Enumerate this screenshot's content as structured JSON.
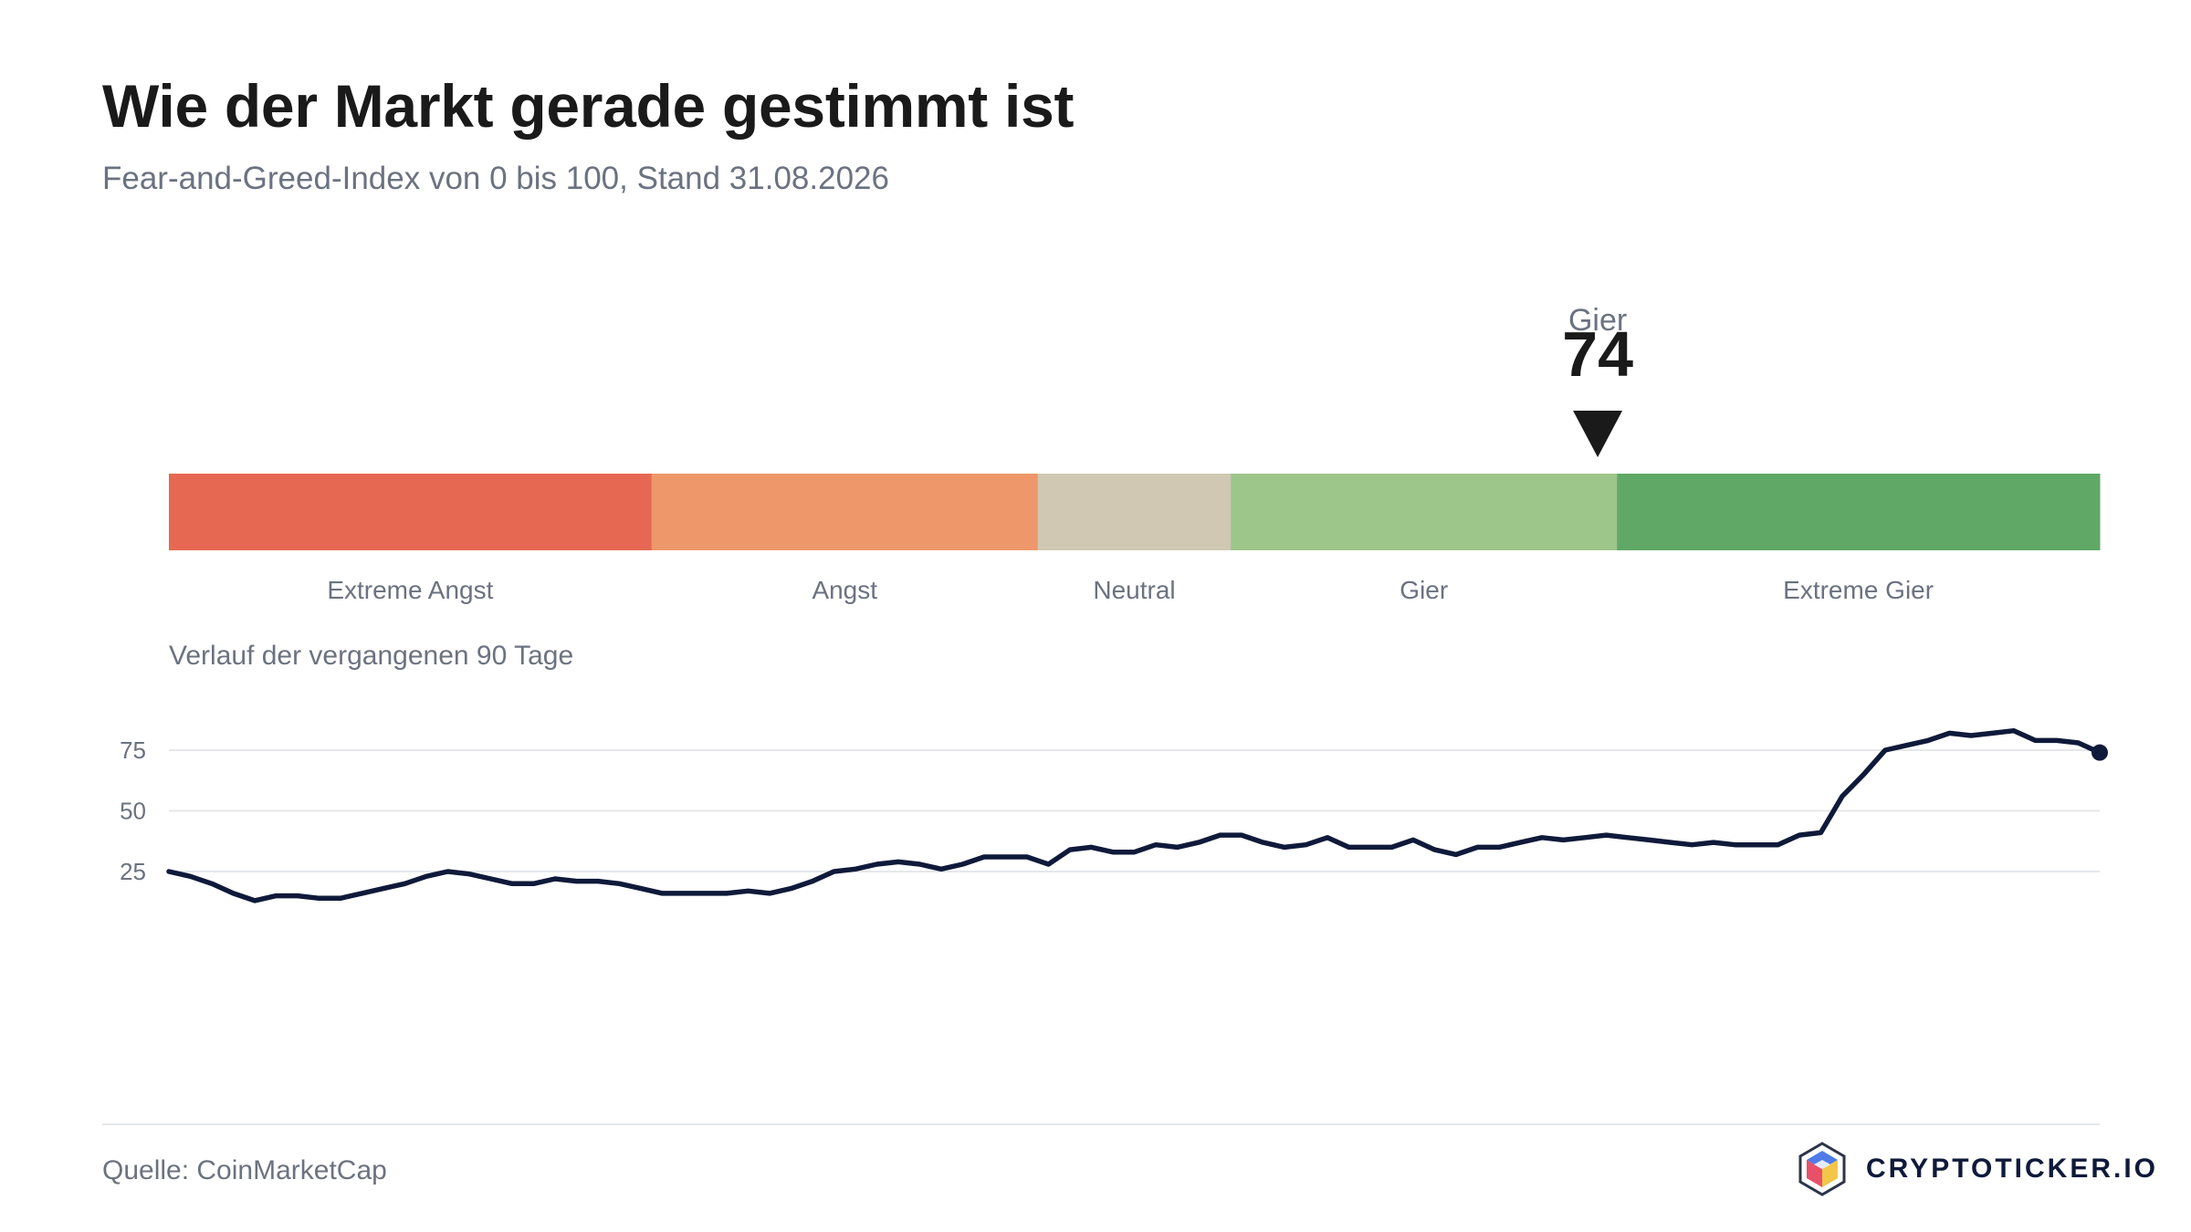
{
  "header": {
    "title": "Wie der Markt gerade gestimmt ist",
    "subtitle": "Fear-and-Greed-Index von 0 bis 100, Stand 31.08.2026"
  },
  "footer": {
    "source": "Quelle: CoinMarketCap",
    "brand": "CRYPTOTICKER.IO"
  },
  "chart_data": [
    {
      "type": "gauge",
      "value": 74,
      "value_label": "Gier",
      "min": 0,
      "max": 100,
      "segments": [
        {
          "label": "Extreme Angst",
          "from": 0,
          "to": 25,
          "color": "#e76852"
        },
        {
          "label": "Angst",
          "from": 25,
          "to": 45,
          "color": "#ee976b"
        },
        {
          "label": "Neutral",
          "from": 45,
          "to": 55,
          "color": "#d0c8b3"
        },
        {
          "label": "Gier",
          "from": 55,
          "to": 75,
          "color": "#9dc68b"
        },
        {
          "label": "Extreme Gier",
          "from": 75,
          "to": 100,
          "color": "#60a865"
        }
      ],
      "marker_color": "#1a1a1a"
    },
    {
      "type": "line",
      "title": "Verlauf der vergangenen 90 Tage",
      "ylim": [
        0,
        100
      ],
      "yticks": [
        25,
        50,
        75
      ],
      "grid": true,
      "line_color": "#0f1a3a",
      "last_point_marker": true,
      "values": [
        25,
        23,
        20,
        16,
        13,
        15,
        15,
        14,
        14,
        16,
        18,
        20,
        23,
        25,
        24,
        22,
        20,
        20,
        22,
        21,
        21,
        20,
        18,
        16,
        16,
        16,
        16,
        17,
        16,
        18,
        21,
        25,
        26,
        28,
        29,
        28,
        26,
        28,
        31,
        31,
        31,
        28,
        34,
        35,
        33,
        33,
        36,
        35,
        37,
        40,
        40,
        37,
        35,
        36,
        39,
        35,
        35,
        35,
        38,
        34,
        32,
        35,
        35,
        37,
        39,
        38,
        39,
        40,
        39,
        38,
        37,
        36,
        37,
        36,
        36,
        36,
        40,
        41,
        56,
        65,
        75,
        77,
        79,
        82,
        81,
        82,
        83,
        79,
        79,
        78,
        74
      ]
    }
  ]
}
